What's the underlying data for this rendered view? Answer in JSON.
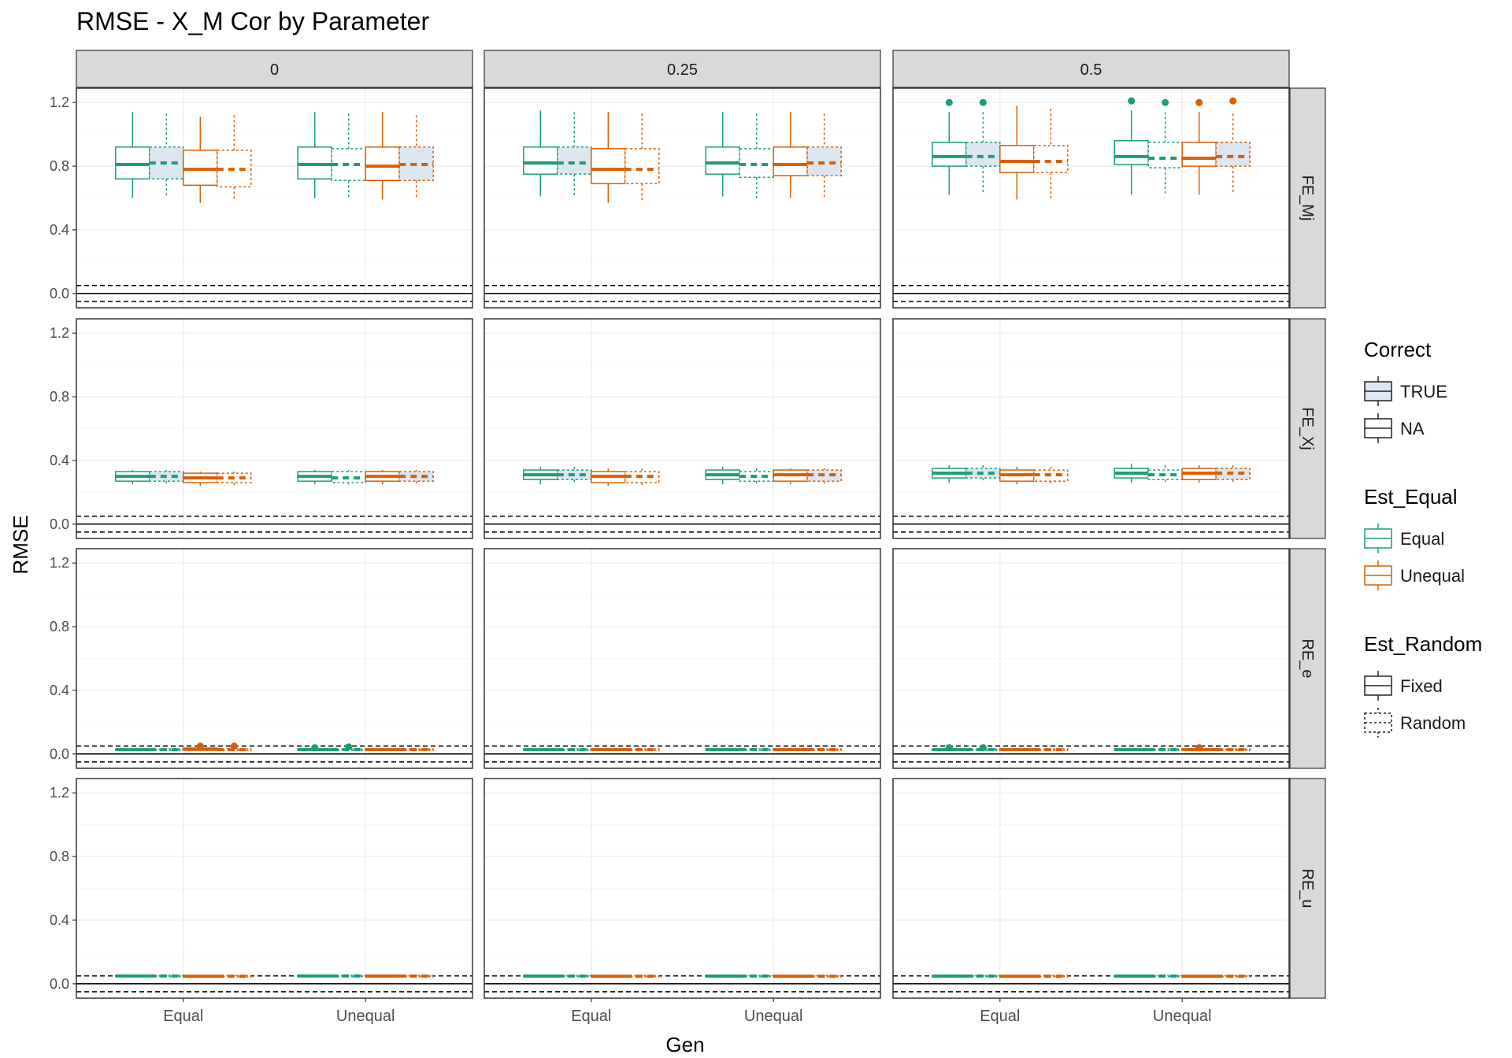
{
  "chart_data": {
    "type": "boxplot",
    "title": "RMSE - X_M Cor by Parameter",
    "xlabel": "Gen",
    "ylabel": "RMSE",
    "ylim": [
      -0.09,
      1.29
    ],
    "yticks": [
      0.0,
      0.4,
      0.8,
      1.2
    ],
    "ytick_labels": [
      "0.0",
      "0.4",
      "0.8",
      "1.2"
    ],
    "categories": [
      "Equal",
      "Unequal"
    ],
    "col_facets": [
      "0",
      "0.25",
      "0.5"
    ],
    "row_facets": [
      "FE_Mj",
      "FE_Xj",
      "RE_e",
      "RE_u"
    ],
    "reference_lines": [
      {
        "y": 0.0,
        "style": "solid"
      },
      {
        "y": 0.05,
        "style": "dashed"
      },
      {
        "y": -0.05,
        "style": "dashed"
      }
    ],
    "group_order": [
      {
        "est_equal": "Equal",
        "est_random": "Fixed",
        "correct": "NA"
      },
      {
        "est_equal": "Equal",
        "est_random": "Random",
        "correct": "TRUE"
      },
      {
        "est_equal": "Unequal",
        "est_random": "Fixed",
        "correct": "NA"
      },
      {
        "est_equal": "Unequal",
        "est_random": "Random",
        "correct": "NA"
      }
    ],
    "group_order_unequal_gen": [
      {
        "est_equal": "Equal",
        "est_random": "Fixed",
        "correct": "NA"
      },
      {
        "est_equal": "Equal",
        "est_random": "Random",
        "correct": "NA"
      },
      {
        "est_equal": "Unequal",
        "est_random": "Fixed",
        "correct": "NA"
      },
      {
        "est_equal": "Unequal",
        "est_random": "Random",
        "correct": "TRUE"
      }
    ],
    "colors": {
      "Equal": "#1b9e77",
      "Unequal": "#d95f02",
      "true_fill": "#dbe6f1"
    },
    "panels": [
      {
        "row": "FE_Mj",
        "col": "0",
        "Equal": [
          [
            0.6,
            0.72,
            0.81,
            0.92,
            1.14,
            []
          ],
          [
            0.61,
            0.72,
            0.82,
            0.92,
            1.13,
            []
          ],
          [
            0.57,
            0.68,
            0.78,
            0.9,
            1.11,
            []
          ],
          [
            0.59,
            0.67,
            0.78,
            0.9,
            1.12,
            []
          ]
        ],
        "Unequal": [
          [
            0.6,
            0.72,
            0.81,
            0.92,
            1.14,
            []
          ],
          [
            0.6,
            0.71,
            0.81,
            0.91,
            1.13,
            []
          ],
          [
            0.59,
            0.71,
            0.8,
            0.92,
            1.14,
            []
          ],
          [
            0.6,
            0.71,
            0.81,
            0.92,
            1.12,
            []
          ]
        ]
      },
      {
        "row": "FE_Mj",
        "col": "0.25",
        "Equal": [
          [
            0.61,
            0.75,
            0.82,
            0.92,
            1.15,
            []
          ],
          [
            0.61,
            0.75,
            0.82,
            0.92,
            1.14,
            []
          ],
          [
            0.57,
            0.69,
            0.78,
            0.91,
            1.14,
            []
          ],
          [
            0.58,
            0.69,
            0.78,
            0.91,
            1.13,
            []
          ]
        ],
        "Unequal": [
          [
            0.61,
            0.75,
            0.82,
            0.92,
            1.14,
            []
          ],
          [
            0.6,
            0.73,
            0.81,
            0.91,
            1.13,
            []
          ],
          [
            0.6,
            0.74,
            0.81,
            0.92,
            1.14,
            []
          ],
          [
            0.6,
            0.74,
            0.82,
            0.92,
            1.13,
            []
          ]
        ]
      },
      {
        "row": "FE_Mj",
        "col": "0.5",
        "Equal": [
          [
            0.62,
            0.8,
            0.86,
            0.95,
            1.14,
            [
              1.2
            ]
          ],
          [
            0.63,
            0.8,
            0.86,
            0.95,
            1.14,
            [
              1.2
            ]
          ],
          [
            0.59,
            0.76,
            0.83,
            0.93,
            1.18,
            []
          ],
          [
            0.59,
            0.76,
            0.83,
            0.93,
            1.16,
            []
          ]
        ],
        "Unequal": [
          [
            0.62,
            0.81,
            0.86,
            0.96,
            1.15,
            [
              1.21
            ]
          ],
          [
            0.63,
            0.79,
            0.85,
            0.95,
            1.14,
            [
              1.2
            ]
          ],
          [
            0.62,
            0.8,
            0.85,
            0.95,
            1.14,
            [
              1.2
            ]
          ],
          [
            0.63,
            0.8,
            0.86,
            0.95,
            1.13,
            [
              1.21
            ]
          ]
        ]
      },
      {
        "row": "FE_Xj",
        "col": "0",
        "Equal": [
          [
            0.25,
            0.27,
            0.3,
            0.33,
            0.34,
            []
          ],
          [
            0.25,
            0.27,
            0.3,
            0.33,
            0.34,
            []
          ],
          [
            0.24,
            0.26,
            0.29,
            0.32,
            0.33,
            []
          ],
          [
            0.24,
            0.26,
            0.29,
            0.32,
            0.33,
            []
          ]
        ],
        "Unequal": [
          [
            0.25,
            0.27,
            0.3,
            0.33,
            0.34,
            []
          ],
          [
            0.25,
            0.26,
            0.29,
            0.33,
            0.34,
            []
          ],
          [
            0.25,
            0.27,
            0.3,
            0.33,
            0.34,
            []
          ],
          [
            0.25,
            0.27,
            0.3,
            0.33,
            0.34,
            []
          ]
        ]
      },
      {
        "row": "FE_Xj",
        "col": "0.25",
        "Equal": [
          [
            0.25,
            0.28,
            0.31,
            0.34,
            0.36,
            []
          ],
          [
            0.25,
            0.28,
            0.31,
            0.34,
            0.36,
            []
          ],
          [
            0.24,
            0.26,
            0.3,
            0.33,
            0.35,
            []
          ],
          [
            0.24,
            0.26,
            0.3,
            0.33,
            0.35,
            []
          ]
        ],
        "Unequal": [
          [
            0.25,
            0.28,
            0.31,
            0.34,
            0.36,
            []
          ],
          [
            0.25,
            0.27,
            0.3,
            0.33,
            0.35,
            []
          ],
          [
            0.25,
            0.27,
            0.31,
            0.34,
            0.35,
            []
          ],
          [
            0.25,
            0.27,
            0.31,
            0.34,
            0.35,
            []
          ]
        ]
      },
      {
        "row": "FE_Xj",
        "col": "0.5",
        "Equal": [
          [
            0.26,
            0.29,
            0.32,
            0.35,
            0.37,
            []
          ],
          [
            0.26,
            0.29,
            0.32,
            0.35,
            0.37,
            []
          ],
          [
            0.25,
            0.27,
            0.31,
            0.34,
            0.36,
            []
          ],
          [
            0.25,
            0.27,
            0.31,
            0.34,
            0.36,
            []
          ]
        ],
        "Unequal": [
          [
            0.26,
            0.29,
            0.32,
            0.35,
            0.38,
            []
          ],
          [
            0.26,
            0.28,
            0.31,
            0.34,
            0.37,
            []
          ],
          [
            0.26,
            0.28,
            0.32,
            0.35,
            0.37,
            []
          ],
          [
            0.26,
            0.28,
            0.32,
            0.35,
            0.37,
            []
          ]
        ]
      },
      {
        "row": "RE_e",
        "col": "0",
        "Equal": [
          [
            0.02,
            0.024,
            0.028,
            0.032,
            0.038,
            []
          ],
          [
            0.021,
            0.024,
            0.028,
            0.032,
            0.037,
            []
          ],
          [
            0.02,
            0.024,
            0.03,
            0.038,
            0.047,
            [
              0.05
            ]
          ],
          [
            0.02,
            0.024,
            0.028,
            0.033,
            0.043,
            [
              0.05
            ]
          ]
        ],
        "Unequal": [
          [
            0.02,
            0.024,
            0.028,
            0.032,
            0.038,
            [
              0.04
            ]
          ],
          [
            0.021,
            0.024,
            0.028,
            0.032,
            0.037,
            [
              0.045
            ]
          ],
          [
            0.02,
            0.024,
            0.028,
            0.032,
            0.038,
            []
          ],
          [
            0.021,
            0.024,
            0.028,
            0.032,
            0.037,
            []
          ]
        ]
      },
      {
        "row": "RE_e",
        "col": "0.25",
        "Equal": [
          [
            0.02,
            0.024,
            0.028,
            0.032,
            0.038,
            []
          ],
          [
            0.021,
            0.024,
            0.028,
            0.032,
            0.037,
            []
          ],
          [
            0.02,
            0.024,
            0.028,
            0.032,
            0.038,
            []
          ],
          [
            0.021,
            0.024,
            0.028,
            0.032,
            0.037,
            []
          ]
        ],
        "Unequal": [
          [
            0.02,
            0.024,
            0.028,
            0.032,
            0.038,
            []
          ],
          [
            0.021,
            0.024,
            0.028,
            0.032,
            0.037,
            []
          ],
          [
            0.02,
            0.024,
            0.028,
            0.032,
            0.038,
            []
          ],
          [
            0.021,
            0.024,
            0.028,
            0.032,
            0.037,
            []
          ]
        ]
      },
      {
        "row": "RE_e",
        "col": "0.5",
        "Equal": [
          [
            0.02,
            0.024,
            0.028,
            0.032,
            0.038,
            [
              0.04
            ]
          ],
          [
            0.021,
            0.024,
            0.028,
            0.032,
            0.037,
            [
              0.04
            ]
          ],
          [
            0.02,
            0.024,
            0.028,
            0.032,
            0.038,
            []
          ],
          [
            0.021,
            0.024,
            0.028,
            0.032,
            0.037,
            []
          ]
        ],
        "Unequal": [
          [
            0.02,
            0.024,
            0.028,
            0.032,
            0.038,
            []
          ],
          [
            0.021,
            0.024,
            0.028,
            0.032,
            0.037,
            []
          ],
          [
            0.02,
            0.024,
            0.028,
            0.032,
            0.038,
            [
              0.04
            ]
          ],
          [
            0.021,
            0.024,
            0.028,
            0.032,
            0.037,
            []
          ]
        ]
      },
      {
        "row": "RE_u",
        "col": "0",
        "Equal": [
          [
            0.042,
            0.046,
            0.05,
            0.053,
            0.057,
            []
          ],
          [
            0.043,
            0.046,
            0.05,
            0.053,
            0.056,
            []
          ],
          [
            0.04,
            0.044,
            0.048,
            0.052,
            0.056,
            []
          ],
          [
            0.041,
            0.044,
            0.048,
            0.052,
            0.055,
            []
          ]
        ],
        "Unequal": [
          [
            0.042,
            0.046,
            0.05,
            0.053,
            0.057,
            []
          ],
          [
            0.043,
            0.046,
            0.05,
            0.053,
            0.056,
            []
          ],
          [
            0.041,
            0.045,
            0.049,
            0.052,
            0.056,
            []
          ],
          [
            0.042,
            0.045,
            0.049,
            0.052,
            0.056,
            []
          ]
        ]
      },
      {
        "row": "RE_u",
        "col": "0.25",
        "Equal": [
          [
            0.042,
            0.046,
            0.049,
            0.052,
            0.056,
            []
          ],
          [
            0.043,
            0.046,
            0.049,
            0.052,
            0.055,
            []
          ],
          [
            0.041,
            0.045,
            0.048,
            0.052,
            0.056,
            []
          ],
          [
            0.042,
            0.045,
            0.048,
            0.052,
            0.055,
            []
          ]
        ],
        "Unequal": [
          [
            0.042,
            0.046,
            0.049,
            0.052,
            0.056,
            []
          ],
          [
            0.043,
            0.046,
            0.049,
            0.052,
            0.055,
            []
          ],
          [
            0.041,
            0.045,
            0.048,
            0.052,
            0.056,
            []
          ],
          [
            0.042,
            0.045,
            0.048,
            0.052,
            0.055,
            []
          ]
        ]
      },
      {
        "row": "RE_u",
        "col": "0.5",
        "Equal": [
          [
            0.042,
            0.046,
            0.049,
            0.052,
            0.056,
            []
          ],
          [
            0.043,
            0.046,
            0.049,
            0.052,
            0.055,
            []
          ],
          [
            0.041,
            0.045,
            0.048,
            0.052,
            0.056,
            []
          ],
          [
            0.042,
            0.045,
            0.048,
            0.052,
            0.055,
            []
          ]
        ],
        "Unequal": [
          [
            0.042,
            0.046,
            0.049,
            0.052,
            0.056,
            []
          ],
          [
            0.043,
            0.046,
            0.049,
            0.052,
            0.055,
            []
          ],
          [
            0.041,
            0.045,
            0.048,
            0.052,
            0.056,
            []
          ],
          [
            0.042,
            0.045,
            0.048,
            0.052,
            0.055,
            []
          ]
        ]
      }
    ],
    "legend": {
      "placement": "right",
      "groups": [
        {
          "title": "Correct",
          "entries": [
            "TRUE",
            "NA"
          ]
        },
        {
          "title": "Est_Equal",
          "entries": [
            "Equal",
            "Unequal"
          ]
        },
        {
          "title": "Est_Random",
          "entries": [
            "Fixed",
            "Random"
          ]
        }
      ]
    }
  }
}
